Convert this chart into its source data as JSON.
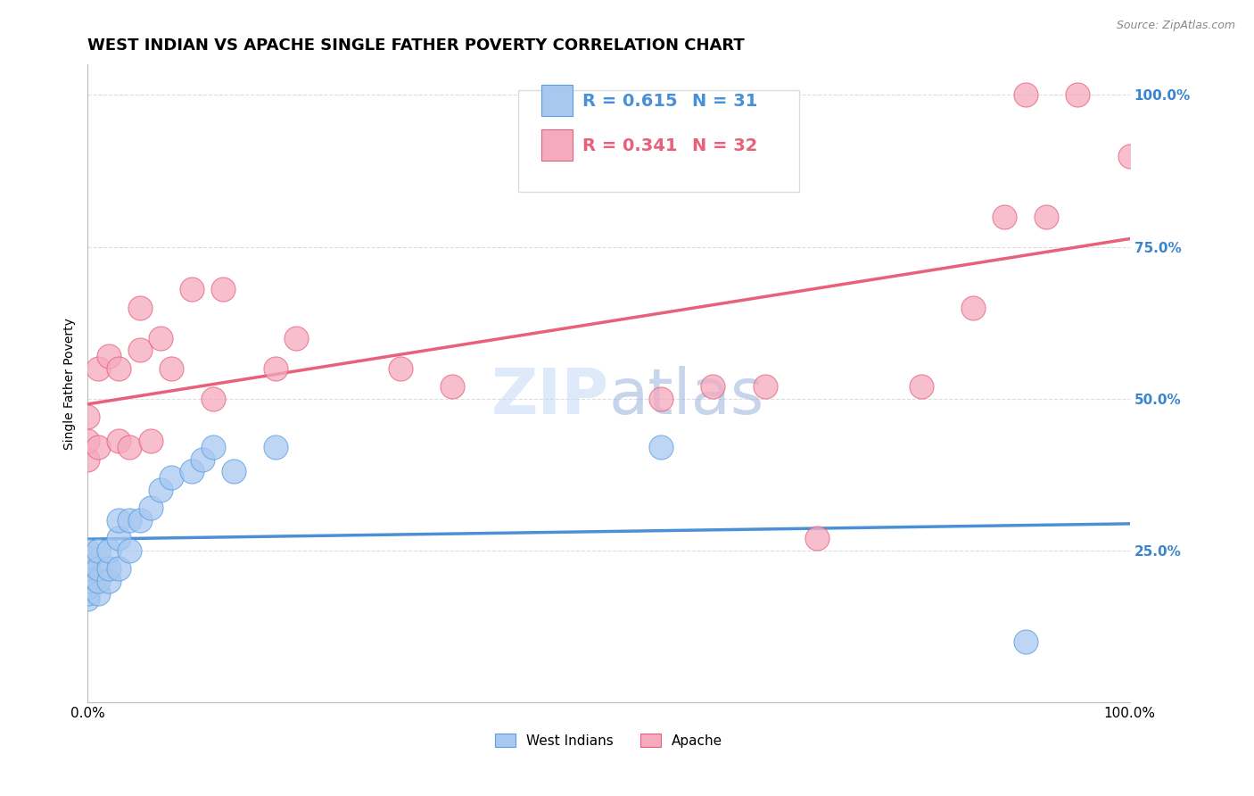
{
  "title": "WEST INDIAN VS APACHE SINGLE FATHER POVERTY CORRELATION CHART",
  "source": "Source: ZipAtlas.com",
  "ylabel": "Single Father Poverty",
  "west_indian_label": "West Indians",
  "apache_label": "Apache",
  "r_west_indian": 0.615,
  "n_west_indian": 31,
  "r_apache": 0.341,
  "n_apache": 32,
  "blue_color": "#A8C8F0",
  "pink_color": "#F5AABE",
  "blue_line_color": "#4A90D9",
  "pink_line_color": "#E8607A",
  "blue_dot_edge": "#5A9FE0",
  "pink_dot_edge": "#E8607A",
  "watermark_color": "#C8DCF5",
  "watermark_text_color": "#A0B8E0",
  "west_indian_x": [
    0.0,
    0.0,
    0.0,
    0.0,
    0.0,
    0.0,
    0.0,
    0.0,
    0.01,
    0.01,
    0.01,
    0.01,
    0.02,
    0.02,
    0.02,
    0.03,
    0.03,
    0.03,
    0.04,
    0.04,
    0.05,
    0.06,
    0.07,
    0.08,
    0.1,
    0.11,
    0.12,
    0.14,
    0.18,
    0.55,
    0.9
  ],
  "west_indian_y": [
    0.17,
    0.18,
    0.19,
    0.2,
    0.22,
    0.23,
    0.24,
    0.25,
    0.18,
    0.2,
    0.22,
    0.25,
    0.2,
    0.22,
    0.25,
    0.22,
    0.27,
    0.3,
    0.25,
    0.3,
    0.3,
    0.32,
    0.35,
    0.37,
    0.38,
    0.4,
    0.42,
    0.38,
    0.42,
    0.42,
    0.1
  ],
  "apache_x": [
    0.0,
    0.0,
    0.0,
    0.01,
    0.01,
    0.02,
    0.03,
    0.03,
    0.04,
    0.05,
    0.05,
    0.06,
    0.07,
    0.08,
    0.1,
    0.12,
    0.13,
    0.18,
    0.2,
    0.3,
    0.35,
    0.55,
    0.6,
    0.65,
    0.7,
    0.8,
    0.85,
    0.88,
    0.9,
    0.92,
    0.95,
    1.0
  ],
  "apache_y": [
    0.4,
    0.43,
    0.47,
    0.42,
    0.55,
    0.57,
    0.43,
    0.55,
    0.42,
    0.58,
    0.65,
    0.43,
    0.6,
    0.55,
    0.68,
    0.5,
    0.68,
    0.55,
    0.6,
    0.55,
    0.52,
    0.5,
    0.52,
    0.52,
    0.27,
    0.52,
    0.65,
    0.8,
    1.0,
    0.8,
    1.0,
    0.9
  ],
  "yticks": [
    0.0,
    0.25,
    0.5,
    0.75,
    1.0
  ],
  "ytick_labels_right": [
    "",
    "25.0%",
    "50.0%",
    "75.0%",
    "100.0%"
  ],
  "xtick_labels": [
    "0.0%",
    "",
    "",
    "",
    "100.0%"
  ],
  "grid_color": "#DDDDDD",
  "background_color": "#FFFFFF",
  "title_fontsize": 13,
  "axis_label_fontsize": 10,
  "tick_fontsize": 11,
  "legend_fontsize": 14,
  "right_ytick_color": "#3A85CF"
}
